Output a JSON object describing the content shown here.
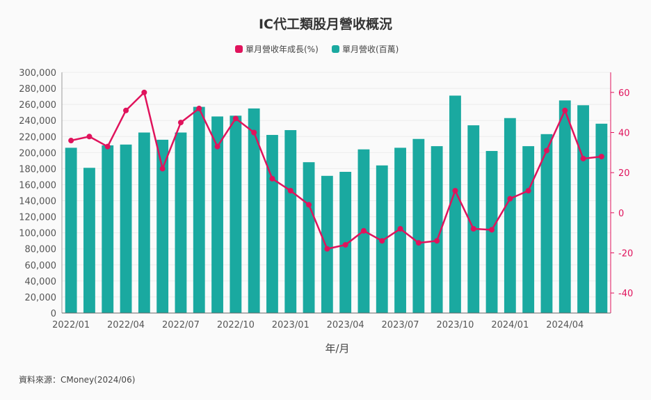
{
  "chart_data": {
    "type": "bar",
    "title": "IC代工類股月營收概況",
    "xlabel": "年/月",
    "source": "資料來源：CMoney(2024/06)",
    "categories": [
      "2022/01",
      "2022/02",
      "2022/03",
      "2022/04",
      "2022/05",
      "2022/06",
      "2022/07",
      "2022/08",
      "2022/09",
      "2022/10",
      "2022/11",
      "2022/12",
      "2023/01",
      "2023/02",
      "2023/03",
      "2023/04",
      "2023/05",
      "2023/06",
      "2023/07",
      "2023/08",
      "2023/09",
      "2023/10",
      "2023/11",
      "2023/12",
      "2024/01",
      "2024/02",
      "2024/03",
      "2024/04",
      "2024/05",
      "2024/06"
    ],
    "x_tick_labels": [
      "2022/01",
      "2022/04",
      "2022/07",
      "2022/10",
      "2023/01",
      "2023/04",
      "2023/07",
      "2023/10",
      "2024/01",
      "2024/04"
    ],
    "x_tick_indices": [
      0,
      3,
      6,
      9,
      12,
      15,
      18,
      21,
      24,
      27
    ],
    "y_left": {
      "min": 0,
      "max": 300000,
      "step": 20000,
      "ticks": [
        "0",
        "20,000",
        "40,000",
        "60,000",
        "80,000",
        "100,000",
        "120,000",
        "140,000",
        "160,000",
        "180,000",
        "200,000",
        "220,000",
        "240,000",
        "260,000",
        "280,000",
        "300,000"
      ]
    },
    "y_right": {
      "min": -50,
      "max": 70,
      "ticks": [
        "-40",
        "-20",
        "0",
        "20",
        "40",
        "60"
      ],
      "tick_values": [
        -40,
        -20,
        0,
        20,
        40,
        60
      ]
    },
    "series": [
      {
        "name": "單月營收(百萬)",
        "type": "bar",
        "axis": "left",
        "color": "#1aa9a0",
        "values": [
          206000,
          181000,
          209000,
          210000,
          225000,
          216000,
          225000,
          257000,
          245000,
          246000,
          255000,
          222000,
          228000,
          188000,
          171000,
          176000,
          204000,
          184000,
          206000,
          217000,
          208000,
          271000,
          234000,
          202000,
          243000,
          208000,
          223000,
          265000,
          259000,
          236000
        ]
      },
      {
        "name": "單月營收年成長(%)",
        "type": "line",
        "axis": "right",
        "color": "#e0135c",
        "values": [
          36,
          38,
          33,
          51,
          60,
          22,
          45,
          52,
          33,
          47,
          40,
          17,
          11,
          4,
          -18,
          -16,
          -9,
          -14,
          -8,
          -15,
          -14,
          11,
          -8,
          -8.5,
          7,
          11,
          31,
          51,
          27,
          28
        ]
      }
    ]
  }
}
